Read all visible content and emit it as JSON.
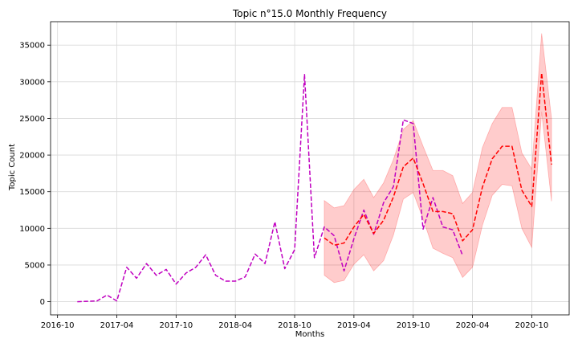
{
  "chart_data": {
    "type": "line",
    "title": "Topic n°15.0 Monthly Frequency",
    "xlabel": "Months",
    "ylabel": "Topic Count",
    "x_ticks": [
      "2016-10",
      "2017-04",
      "2017-10",
      "2018-04",
      "2018-10",
      "2019-04",
      "2019-10",
      "2020-04",
      "2020-10"
    ],
    "y_ticks": [
      0,
      5000,
      10000,
      15000,
      20000,
      25000,
      30000,
      35000
    ],
    "y_tick_labels": [
      "0",
      "5000",
      "10000",
      "15000",
      "20000",
      "25000",
      "30000",
      "35000"
    ],
    "xlim": [
      "2016-09-10",
      "2021-01-25"
    ],
    "ylim": [
      -1800,
      38200
    ],
    "grid": true,
    "series": [
      {
        "color": "#c000c0",
        "style": "dashed",
        "x": [
          "2016-12",
          "2017-01",
          "2017-02",
          "2017-03",
          "2017-04",
          "2017-05",
          "2017-06",
          "2017-07",
          "2017-08",
          "2017-09",
          "2017-10",
          "2017-11",
          "2017-12",
          "2018-01",
          "2018-02",
          "2018-03",
          "2018-04",
          "2018-05",
          "2018-06",
          "2018-07",
          "2018-08",
          "2018-09",
          "2018-10",
          "2018-11",
          "2018-12",
          "2019-01",
          "2019-02",
          "2019-03",
          "2019-04",
          "2019-05",
          "2019-06",
          "2019-07",
          "2019-08",
          "2019-09",
          "2019-10",
          "2019-11",
          "2019-12",
          "2020-01",
          "2020-02",
          "2020-03"
        ],
        "y": [
          0,
          50,
          100,
          900,
          100,
          4700,
          3200,
          5200,
          3600,
          4400,
          2400,
          3900,
          4700,
          6400,
          3600,
          2800,
          2800,
          3400,
          6500,
          5200,
          10900,
          4500,
          7100,
          31000,
          6000,
          10200,
          9000,
          4200,
          8600,
          12500,
          9200,
          13500,
          15700,
          24800,
          24300,
          9900,
          14200,
          10200,
          9800,
          6300
        ]
      },
      {
        "color": "#ff0000",
        "style": "dashed",
        "x": [
          "2019-01",
          "2019-02",
          "2019-03",
          "2019-04",
          "2019-05",
          "2019-06",
          "2019-07",
          "2019-08",
          "2019-09",
          "2019-10",
          "2019-11",
          "2019-12",
          "2020-01",
          "2020-02",
          "2020-03",
          "2020-04",
          "2020-05",
          "2020-06",
          "2020-07",
          "2020-08",
          "2020-09",
          "2020-10",
          "2020-11",
          "2020-12"
        ],
        "y": [
          8700,
          7700,
          8000,
          10200,
          11900,
          9300,
          11100,
          14300,
          18400,
          19600,
          16100,
          12300,
          12300,
          12000,
          8300,
          9800,
          15600,
          19500,
          21200,
          21200,
          15200,
          13000,
          31200,
          18700
        ],
        "band_upper": [
          13800,
          12800,
          13100,
          15300,
          16700,
          14200,
          16200,
          19400,
          23500,
          24700,
          21200,
          17900,
          17900,
          17200,
          13400,
          14900,
          21000,
          24300,
          26500,
          26500,
          20300,
          18100,
          36600,
          25000
        ],
        "band_lower": [
          3600,
          2600,
          2900,
          5100,
          6400,
          4200,
          5600,
          9100,
          14000,
          14900,
          11300,
          7300,
          6600,
          6000,
          3300,
          4700,
          10400,
          14500,
          16000,
          15800,
          10000,
          7400,
          25900,
          13700
        ],
        "band_color": "#ff0000",
        "band_opacity": 0.2
      }
    ]
  }
}
